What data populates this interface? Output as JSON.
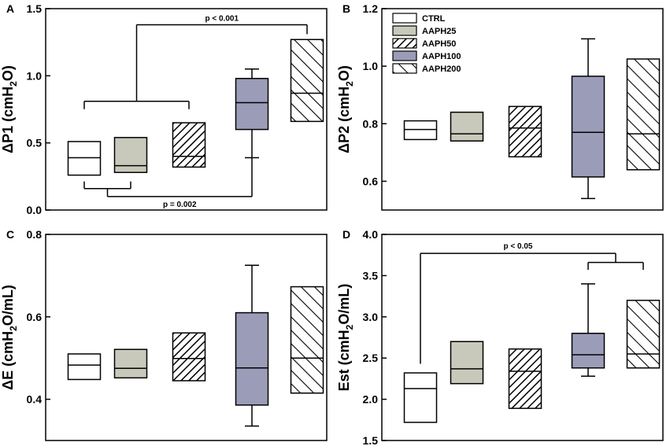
{
  "figure": {
    "groups": [
      "CTRL",
      "AAPH25",
      "AAPH50",
      "AAPH100",
      "AAPH200"
    ],
    "colors": {
      "CTRL": "#ffffff",
      "AAPH25": "#c9c9bb",
      "AAPH50": "#ffffff",
      "AAPH100": "#9b9cb8",
      "AAPH200": "#ffffff",
      "line": "#000000"
    },
    "patterns": {
      "CTRL": "none",
      "AAPH25": "none",
      "AAPH50": "dense-diagonal",
      "AAPH100": "none",
      "AAPH200": "sparse-diagonal"
    }
  },
  "chart_data": [
    {
      "type": "box",
      "panel": "A",
      "ylabel": "ΔP1 (cmH₂O)",
      "ylabel_parts": [
        "ΔP1 (cmH",
        "2",
        "O)"
      ],
      "ylim": [
        0.0,
        1.5
      ],
      "yticks": [
        0.0,
        0.5,
        1.0,
        1.5
      ],
      "tick_labels": [
        "0.0",
        "0.5",
        "1.0",
        "1.5"
      ],
      "boxes": [
        {
          "group": "CTRL",
          "q1": 0.26,
          "median": 0.39,
          "q3": 0.51
        },
        {
          "group": "AAPH25",
          "q1": 0.28,
          "median": 0.33,
          "q3": 0.54
        },
        {
          "group": "AAPH50",
          "q1": 0.32,
          "median": 0.4,
          "q3": 0.65
        },
        {
          "group": "AAPH100",
          "q1": 0.6,
          "median": 0.8,
          "q3": 0.98,
          "whisker_low": 0.39,
          "whisker_high": 1.05
        },
        {
          "group": "AAPH200",
          "q1": 0.66,
          "median": 0.87,
          "q3": 1.27
        }
      ],
      "annotations": [
        {
          "text": "p < 0.001",
          "type": "top-bracket",
          "left_groups": [
            0,
            2
          ],
          "right_group": 4,
          "left_bar_y": 0.81,
          "top_y": 1.38,
          "right_tip_y": 1.31
        },
        {
          "text": "p = 0.002",
          "type": "bottom-bracket",
          "left_groups": [
            0,
            1
          ],
          "right_group": 3,
          "left_bar_y": 0.16,
          "bottom_y": 0.1,
          "right_tip_y": 0.39
        }
      ]
    },
    {
      "type": "box",
      "panel": "B",
      "ylabel": "ΔP2 (cmH₂O)",
      "ylabel_parts": [
        "ΔP2 (cmH",
        "2",
        "O)"
      ],
      "ylim": [
        0.5,
        1.2
      ],
      "yticks": [
        0.6,
        0.8,
        1.0,
        1.2
      ],
      "tick_labels": [
        "0.6",
        "0.8",
        "1.0",
        "1.2"
      ],
      "boxes": [
        {
          "group": "CTRL",
          "q1": 0.745,
          "median": 0.78,
          "q3": 0.81
        },
        {
          "group": "AAPH25",
          "q1": 0.74,
          "median": 0.765,
          "q3": 0.84
        },
        {
          "group": "AAPH50",
          "q1": 0.685,
          "median": 0.785,
          "q3": 0.86
        },
        {
          "group": "AAPH100",
          "q1": 0.615,
          "median": 0.77,
          "q3": 0.965,
          "whisker_low": 0.54,
          "whisker_high": 1.095
        },
        {
          "group": "AAPH200",
          "q1": 0.64,
          "median": 0.765,
          "q3": 1.025
        }
      ],
      "legend": {
        "placement": "top-left",
        "entries": [
          "CTRL",
          "AAPH25",
          "AAPH50",
          "AAPH100",
          "AAPH200"
        ]
      },
      "annotations": []
    },
    {
      "type": "box",
      "panel": "C",
      "ylabel": "ΔE (cmH₂O/mL)",
      "ylabel_parts": [
        "ΔE (cmH",
        "2",
        "O/mL)"
      ],
      "ylim": [
        0.3,
        0.8
      ],
      "yticks": [
        0.4,
        0.6,
        0.8
      ],
      "tick_labels": [
        "0.4",
        "0.6",
        "0.8"
      ],
      "boxes": [
        {
          "group": "CTRL",
          "q1": 0.448,
          "median": 0.483,
          "q3": 0.51
        },
        {
          "group": "AAPH25",
          "q1": 0.452,
          "median": 0.475,
          "q3": 0.521
        },
        {
          "group": "AAPH50",
          "q1": 0.445,
          "median": 0.499,
          "q3": 0.561
        },
        {
          "group": "AAPH100",
          "q1": 0.386,
          "median": 0.476,
          "q3": 0.61,
          "whisker_low": 0.335,
          "whisker_high": 0.725
        },
        {
          "group": "AAPH200",
          "q1": 0.415,
          "median": 0.5,
          "q3": 0.673
        }
      ],
      "annotations": []
    },
    {
      "type": "box",
      "panel": "D",
      "ylabel": "Est (cmH₂O/mL)",
      "ylabel_parts": [
        "Est (cmH",
        "2",
        "O/mL)"
      ],
      "ylim": [
        1.5,
        4.0
      ],
      "yticks": [
        1.5,
        2.0,
        2.5,
        3.0,
        3.5,
        4.0
      ],
      "tick_labels": [
        "1.5",
        "2.0",
        "2.5",
        "3.0",
        "3.5",
        "4.0"
      ],
      "boxes": [
        {
          "group": "CTRL",
          "q1": 1.72,
          "median": 2.13,
          "q3": 2.32
        },
        {
          "group": "AAPH25",
          "q1": 2.19,
          "median": 2.37,
          "q3": 2.7
        },
        {
          "group": "AAPH50",
          "q1": 1.89,
          "median": 2.34,
          "q3": 2.61
        },
        {
          "group": "AAPH100",
          "q1": 2.38,
          "median": 2.54,
          "q3": 2.8,
          "whisker_low": 2.28,
          "whisker_high": 3.4
        },
        {
          "group": "AAPH200",
          "q1": 2.38,
          "median": 2.55,
          "q3": 3.2
        }
      ],
      "annotations": [
        {
          "text": "p < 0.05",
          "type": "top-bracket-d",
          "left_group": 0,
          "right_groups": [
            3,
            4
          ],
          "left_tip_y": 2.43,
          "top_y": 3.77,
          "right_bar_y": 3.66,
          "right_tip_y": 3.57
        }
      ]
    }
  ]
}
